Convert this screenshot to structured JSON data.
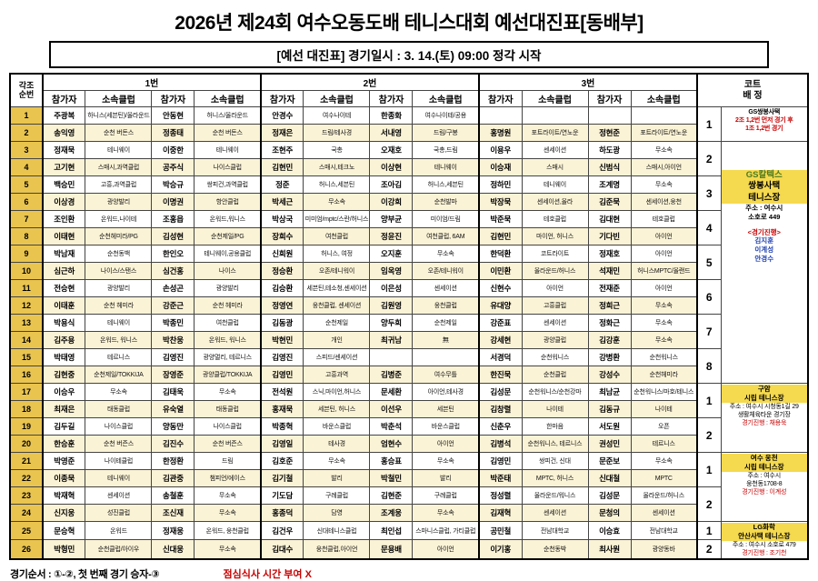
{
  "title": "2026년 제24회 여수오동도배 테니스대회 예선대진표[동배부]",
  "subtitle": "[예선 대진표] 경기일시 : 3. 14.(토) 09:00 정각 시작",
  "footer": {
    "order_note": "경기순서 : ①-②, 첫 번째 경기 승자-③",
    "lunch_note": "점심식사 시간 부여 X"
  },
  "colors": {
    "row_number_bg": "#E9C44F",
    "alt_row_bg": "#FBF3D6",
    "venue_bg": "#F5D94E",
    "accent_red": "#C80000",
    "accent_blue": "#1F3FAF"
  },
  "table": {
    "headers": {
      "seq": "각조\n순번",
      "sections": [
        "1번",
        "2번",
        "3번"
      ],
      "participant": "참가자",
      "club": "소속클럽",
      "court": "코트\n배 정"
    },
    "rows": [
      {
        "no": 1,
        "cells": [
          "주광복",
          "하니스(세븐틴)/올라운드",
          "안동현",
          "허니스/올라운드",
          "안경수",
          "여수나이테",
          "한종화",
          "여수나이테/공용",
          "",
          "",
          "",
          ""
        ]
      },
      {
        "no": 2,
        "cells": [
          "송익영",
          "순천 버돈스",
          "정종태",
          "순천 버돈스",
          "정재은",
          "드림/테사경",
          "서내영",
          "드림/구봉",
          "홍명원",
          "포트라이트/연노운",
          "정현준",
          "포트라이트/연노운"
        ]
      },
      {
        "no": 3,
        "cells": [
          "정재묵",
          "테니웨이",
          "이중한",
          "테니웨이",
          "조현주",
          "국총",
          "오재호",
          "국총,드림",
          "이용우",
          "센세이션",
          "하도광",
          "무소속"
        ]
      },
      {
        "no": 4,
        "cells": [
          "고기현",
          "스매시,과역클럽",
          "공주식",
          "나이스클럽",
          "김현민",
          "스매시,테크노",
          "이상현",
          "테니웨이",
          "이승재",
          "스매시",
          "신범식",
          "스매시,아이언"
        ]
      },
      {
        "no": 5,
        "cells": [
          "백승민",
          "고흥,과역클럽",
          "박승규",
          "쌍피건,과역클럽",
          "정준",
          "허니스,세븐틴",
          "조아김",
          "허니스,세븐틴",
          "정하민",
          "테니웨이",
          "조계명",
          "무소속"
        ]
      },
      {
        "no": 6,
        "cells": [
          "이상경",
          "광양발리",
          "이명권",
          "항안클럽",
          "박세근",
          "무소속",
          "이강희",
          "순천발마",
          "박장묵",
          "센세이션,올라",
          "김준묵",
          "센세이션,웅천"
        ]
      },
      {
        "no": 7,
        "cells": [
          "조인환",
          "온워드,나이테",
          "조홍읍",
          "온워드,워니스",
          "박상국",
          "미미엄/mptc/스란/허니스",
          "양부균",
          "미이엄/드림",
          "박준묵",
          "테호클럽",
          "김대현",
          "테호클럽"
        ]
      },
      {
        "no": 8,
        "cells": [
          "이태현",
          "순천헤미라/PG",
          "김성현",
          "순천제일/PG",
          "장희수",
          "여천클럽",
          "정윤진",
          "여천클럽, 6AM",
          "김현민",
          "마이언, 허니스",
          "기다빈",
          "아이언"
        ]
      },
      {
        "no": 9,
        "cells": [
          "박남재",
          "순천동백",
          "한인오",
          "테니웨이,공용클럽",
          "신희원",
          "허니스, 여정",
          "오지훈",
          "무소속",
          "한덕환",
          "코트라이트",
          "정재호",
          "아이언"
        ]
      },
      {
        "no": 10,
        "cells": [
          "심근하",
          "나이스/스탠스",
          "심건홍",
          "나이스",
          "정승환",
          "오존/테니워이",
          "임옥영",
          "오존/테니워이",
          "이민환",
          "올라운드/허니스",
          "석재민",
          "허니스MPTC/올랜드"
        ]
      },
      {
        "no": 11,
        "cells": [
          "전승현",
          "광양발리",
          "손성곤",
          "광양발리",
          "김승환",
          "세븐틴,테소청,센세이션",
          "이은성",
          "센세이션",
          "신현수",
          "아이언",
          "전재준",
          "아이언"
        ]
      },
      {
        "no": 12,
        "cells": [
          "이태훈",
          "순천 헤미라",
          "강준근",
          "순천 헤미라",
          "정영연",
          "웅천클럽, 센세이션",
          "김원영",
          "웅천클럽",
          "유대양",
          "고흥클럽",
          "정희근",
          "무소속"
        ]
      },
      {
        "no": 13,
        "cells": [
          "박용식",
          "테니웨이",
          "박종민",
          "여천클럽",
          "김동광",
          "순천제일",
          "양두희",
          "순천제일",
          "강준표",
          "센세이션",
          "정화근",
          "무소속"
        ]
      },
      {
        "no": 14,
        "cells": [
          "김주용",
          "온워드, 워니스",
          "박찬웅",
          "온워드, 워니스",
          "박현민",
          "개인",
          "최귀남",
          "無",
          "강세현",
          "광양클럽",
          "김강훈",
          "무소속"
        ]
      },
      {
        "no": 15,
        "cells": [
          "박태영",
          "테르니스",
          "김영진",
          "광양멀리, 테르니스",
          "김영진",
          "스피드/센세이션",
          "",
          "",
          "서경덕",
          "순천워니스",
          "강병환",
          "순천워니스"
        ]
      },
      {
        "no": 16,
        "cells": [
          "김현중",
          "순천제일/TOKKIJA",
          "장영준",
          "광양클럽/TOKKIJA",
          "김영민",
          "고흥과역",
          "김병준",
          "여수무틀",
          "한진묵",
          "순천클럽",
          "강성수",
          "순천헤미라"
        ]
      },
      {
        "no": 17,
        "cells": [
          "이승우",
          "무소속",
          "김태욱",
          "무소속",
          "전석원",
          "스닉,마이언,허니스",
          "문세환",
          "아이언,테사경",
          "김성문",
          "순천워니스/순천강마",
          "최남균",
          "순천워니스/마호/테니스"
        ]
      },
      {
        "no": 18,
        "cells": [
          "최재은",
          "태동클럽",
          "유숙열",
          "태동클럽",
          "홍재묵",
          "세븐틴, 허니스",
          "이선우",
          "세븐틴",
          "김창렬",
          "나이테",
          "김동규",
          "나이테"
        ]
      },
      {
        "no": 19,
        "cells": [
          "김두길",
          "나이스클럽",
          "양동만",
          "나이스클럽",
          "박종혁",
          "바운스클럽",
          "박춘석",
          "바운스클럽",
          "신춘우",
          "한마음",
          "서도원",
          "오픈"
        ]
      },
      {
        "no": 20,
        "cells": [
          "한승훈",
          "순천 버즌스",
          "김진수",
          "순천 버즌스",
          "김영일",
          "테사경",
          "엄현수",
          "아이언",
          "김병석",
          "순천워니스, 테르니스",
          "권성민",
          "테르니스"
        ]
      },
      {
        "no": 21,
        "cells": [
          "박영준",
          "나이테클럽",
          "한정환",
          "드림",
          "김호준",
          "무소속",
          "홍승표",
          "무소속",
          "김영민",
          "쌍피건, 신대",
          "문준보",
          "무소속"
        ]
      },
      {
        "no": 22,
        "cells": [
          "이종묵",
          "테니웨이",
          "김관중",
          "챔피언/에이스",
          "김기철",
          "발리",
          "박철민",
          "발리",
          "박준태",
          "MPTC, 허니스",
          "신대철",
          "MPTC"
        ]
      },
      {
        "no": 23,
        "cells": [
          "박재혁",
          "센세이션",
          "송철훈",
          "무소속",
          "기도담",
          "구례클럽",
          "김현준",
          "구례클럽",
          "정성렬",
          "올라운드/워니스",
          "김성문",
          "올라운드/허니스"
        ]
      },
      {
        "no": 24,
        "cells": [
          "신지웅",
          "성진클럽",
          "조신재",
          "무소속",
          "홍종덕",
          "담영",
          "조계웅",
          "무소속",
          "김재혁",
          "센세이션",
          "문청의",
          "센세이션"
        ]
      },
      {
        "no": 25,
        "cells": [
          "문승혁",
          "온워드",
          "정재웅",
          "온워드, 웅천클럽",
          "김건우",
          "신대테니스클럽",
          "최인섭",
          "스마니스클럽, 가티클럽",
          "공민철",
          "전남대학교",
          "이승효",
          "전남대학교"
        ]
      },
      {
        "no": 26,
        "cells": [
          "박형민",
          "순천클럽/아이우",
          "신대웅",
          "무소속",
          "김대수",
          "웅천클럽,아이언",
          "문용배",
          "아이언",
          "이기홍",
          "순천동박",
          "최사원",
          "광양동바"
        ]
      }
    ],
    "courts": [
      {
        "row": 1,
        "span": 2,
        "label": "1"
      },
      {
        "row": 3,
        "span": 2,
        "label": "2"
      },
      {
        "row": 5,
        "span": 2,
        "label": "3"
      },
      {
        "row": 7,
        "span": 2,
        "label": "4"
      },
      {
        "row": 9,
        "span": 2,
        "label": "5"
      },
      {
        "row": 11,
        "span": 2,
        "label": "6"
      },
      {
        "row": 13,
        "span": 2,
        "label": "7"
      },
      {
        "row": 15,
        "span": 2,
        "label": "8"
      },
      {
        "row": 17,
        "span": 2,
        "label": "1"
      },
      {
        "row": 19,
        "span": 2,
        "label": "2"
      },
      {
        "row": 21,
        "span": 2,
        "label": "1"
      },
      {
        "row": 23,
        "span": 2,
        "label": "2"
      },
      {
        "row": 25,
        "span": 1,
        "label": "1"
      },
      {
        "row": 26,
        "span": 1,
        "label": "2"
      }
    ],
    "info_blocks": [
      {
        "row": 1,
        "span": 2,
        "lines": [
          {
            "t": "GS쌍봉사택",
            "c": "tiny b"
          },
          {
            "t": "2조 1,2번 먼저 경기 후",
            "c": "tiny red b"
          },
          {
            "t": "1조 1,2번 경기",
            "c": "tiny red b"
          }
        ]
      },
      {
        "row": 3,
        "span": 14,
        "lines": [
          {
            "t": "",
            "c": "sp"
          },
          {
            "t": "GS칼텍스",
            "c": "big b green yel"
          },
          {
            "t": "쌍봉사택",
            "c": "big b yel"
          },
          {
            "t": "테니스장",
            "c": "big b yel"
          },
          {
            "t": "주소 : 여수시",
            "c": "b"
          },
          {
            "t": "소호로 449",
            "c": "b"
          },
          {
            "t": "<경기진행>",
            "c": "b red mt"
          },
          {
            "t": "김지훈",
            "c": "blue b"
          },
          {
            "t": "이계성",
            "c": "blue b"
          },
          {
            "t": "안경수",
            "c": "blue b"
          }
        ]
      },
      {
        "row": 17,
        "span": 4,
        "lines": [
          {
            "t": "구암",
            "c": "b yel"
          },
          {
            "t": "시립 테니스장",
            "c": "b yel"
          },
          {
            "t": "주소 : 여수시 시청동1길 29",
            "c": "tiny"
          },
          {
            "t": "생활체육타운 경기장",
            "c": "tiny"
          },
          {
            "t": "경기진행 : 채용욱",
            "c": "tiny red"
          }
        ]
      },
      {
        "row": 21,
        "span": 4,
        "lines": [
          {
            "t": "여수 웅천",
            "c": "b yel"
          },
          {
            "t": "시립 테니스장",
            "c": "b yel"
          },
          {
            "t": "주소 : 여수시",
            "c": "tiny"
          },
          {
            "t": "웅천동1708-8",
            "c": "tiny"
          },
          {
            "t": "경기진행 : 이계성",
            "c": "tiny red"
          }
        ]
      },
      {
        "row": 25,
        "span": 2,
        "lines": [
          {
            "t": "LG화학",
            "c": "b yel"
          },
          {
            "t": "안산사택 테니스장",
            "c": "b yel"
          },
          {
            "t": "주소 : 여수시 소호로 479",
            "c": "tiny"
          },
          {
            "t": "경기진행 : 조기천",
            "c": "tiny red"
          }
        ]
      }
    ]
  }
}
